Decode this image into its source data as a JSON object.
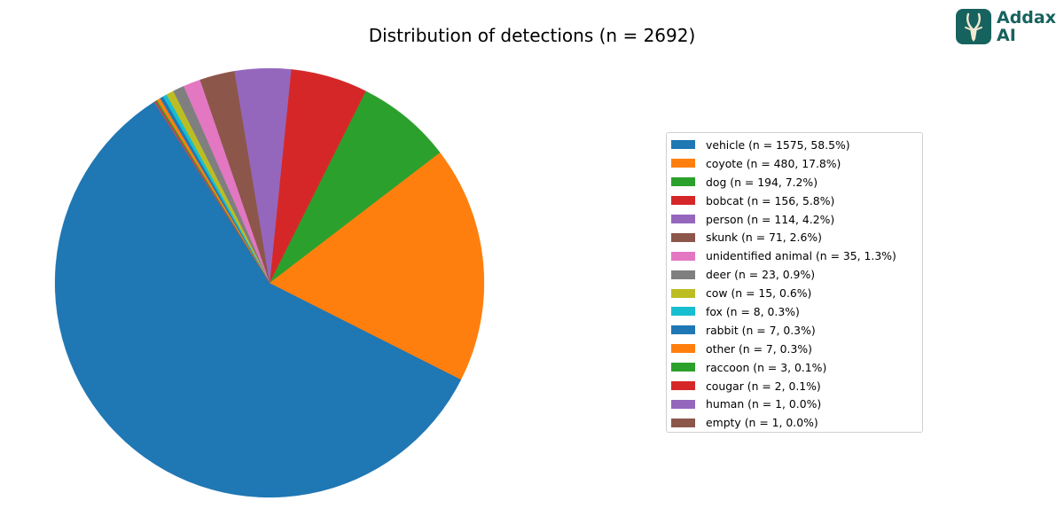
{
  "logo": {
    "line1": "Addax",
    "line2": "AI",
    "color": "#16625e"
  },
  "chart_data": {
    "type": "pie",
    "title": "Distribution of detections (n = 2692)",
    "total": 2692,
    "start_angle_deg": 122.6,
    "direction": "counterclockwise",
    "legend_position": "right",
    "categories": [
      "vehicle",
      "coyote",
      "dog",
      "bobcat",
      "person",
      "skunk",
      "unidentified animal",
      "deer",
      "cow",
      "fox",
      "rabbit",
      "other",
      "raccoon",
      "cougar",
      "human",
      "empty"
    ],
    "values": [
      1575,
      480,
      194,
      156,
      114,
      71,
      35,
      23,
      15,
      8,
      7,
      7,
      3,
      2,
      1,
      1
    ],
    "percentages": [
      58.5,
      17.8,
      7.2,
      5.8,
      4.2,
      2.6,
      1.3,
      0.9,
      0.6,
      0.3,
      0.3,
      0.3,
      0.1,
      0.1,
      0.0,
      0.0
    ],
    "colors": [
      "#1f77b4",
      "#ff7f0e",
      "#2ca02c",
      "#d62728",
      "#9467bd",
      "#8c564b",
      "#e377c2",
      "#7f7f7f",
      "#bcbd22",
      "#17becf",
      "#1f77b4",
      "#ff7f0e",
      "#2ca02c",
      "#d62728",
      "#9467bd",
      "#8c564b"
    ],
    "legend_labels": [
      "vehicle (n = 1575, 58.5%)",
      "coyote (n = 480, 17.8%)",
      "dog (n = 194, 7.2%)",
      "bobcat (n = 156, 5.8%)",
      "person (n = 114, 4.2%)",
      "skunk (n = 71, 2.6%)",
      "unidentified animal (n = 35, 1.3%)",
      "deer (n = 23, 0.9%)",
      "cow (n = 15, 0.6%)",
      "fox (n = 8, 0.3%)",
      "rabbit (n = 7, 0.3%)",
      "other (n = 7, 0.3%)",
      "raccoon (n = 3, 0.1%)",
      "cougar (n = 2, 0.1%)",
      "human (n = 1, 0.0%)",
      "empty (n = 1, 0.0%)"
    ]
  }
}
